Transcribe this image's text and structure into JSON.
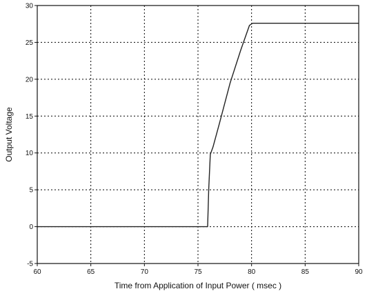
{
  "chart_data": {
    "type": "line",
    "title": "",
    "xlabel": "Time from Application of Input Power ( msec )",
    "ylabel": "Output Voltage",
    "xlim": [
      60,
      90
    ],
    "ylim": [
      -5,
      30
    ],
    "grid": true,
    "grid_style": "dotted",
    "x_ticks": [
      60,
      65,
      70,
      75,
      80,
      85,
      90
    ],
    "y_ticks": [
      -5,
      0,
      5,
      10,
      15,
      20,
      25,
      30
    ],
    "x_tick_labels": [
      "60",
      "65",
      "70",
      "75",
      "80",
      "85",
      "90"
    ],
    "y_tick_labels": [
      "-5",
      "0",
      "5",
      "10",
      "15",
      "20",
      "25",
      "30"
    ],
    "line_color": "#222222",
    "series": [
      {
        "x": [
          60,
          65,
          70,
          75,
          75.9,
          76.0,
          76.15,
          76.4,
          77.0,
          78.0,
          79.0,
          79.8,
          80.1,
          82,
          85,
          88,
          90
        ],
        "y": [
          0,
          0,
          0,
          0,
          0,
          5,
          9.8,
          10.8,
          14.0,
          19.5,
          24.0,
          27.3,
          27.6,
          27.6,
          27.6,
          27.6,
          27.6
        ]
      }
    ]
  }
}
